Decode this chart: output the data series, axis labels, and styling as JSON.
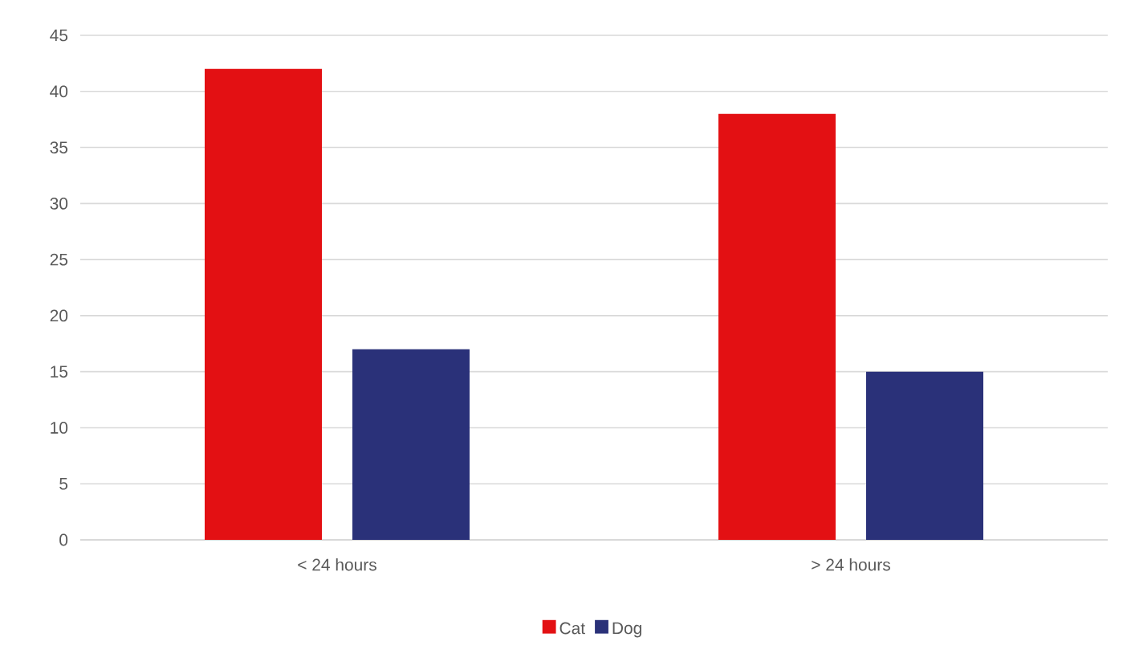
{
  "chart_data": {
    "type": "bar",
    "categories": [
      "< 24 hours",
      "> 24 hours"
    ],
    "series": [
      {
        "name": "Cat",
        "color": "#e31013",
        "values": [
          42,
          38
        ]
      },
      {
        "name": "Dog",
        "color": "#2a3179",
        "values": [
          17,
          15
        ]
      }
    ],
    "ylim": [
      0,
      45
    ],
    "yticks": [
      0,
      5,
      10,
      15,
      20,
      25,
      30,
      35,
      40,
      45
    ],
    "grid": "y",
    "legend": "bottom"
  }
}
